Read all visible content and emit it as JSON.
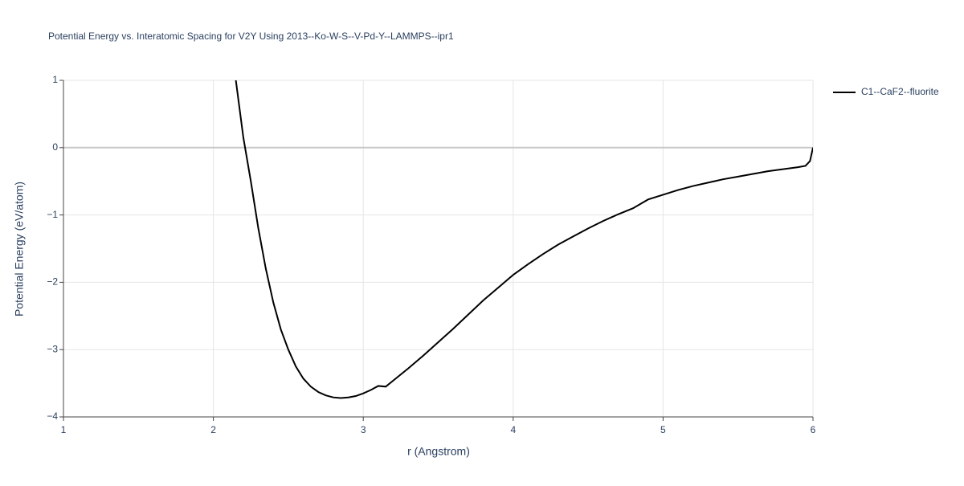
{
  "chart_data": {
    "type": "line",
    "title": "Potential Energy vs. Interatomic Spacing for V2Y Using 2013--Ko-W-S--V-Pd-Y--LAMMPS--ipr1",
    "xlabel": "r (Angstrom)",
    "ylabel": "Potential Energy (eV/atom)",
    "x": [
      2.15,
      2.2,
      2.25,
      2.3,
      2.35,
      2.4,
      2.45,
      2.5,
      2.55,
      2.6,
      2.65,
      2.7,
      2.75,
      2.8,
      2.85,
      2.9,
      2.95,
      3.0,
      3.05,
      3.1,
      3.15,
      3.2,
      3.3,
      3.4,
      3.5,
      3.6,
      3.7,
      3.8,
      3.9,
      4.0,
      4.1,
      4.2,
      4.3,
      4.4,
      4.5,
      4.6,
      4.7,
      4.8,
      4.9,
      5.0,
      5.1,
      5.2,
      5.3,
      5.4,
      5.5,
      5.6,
      5.7,
      5.8,
      5.9,
      5.95,
      5.98,
      6.0
    ],
    "series": [
      {
        "name": "C1--CaF2--fluorite",
        "color": "#000000",
        "values": [
          1.0,
          0.15,
          -0.5,
          -1.2,
          -1.8,
          -2.3,
          -2.7,
          -3.0,
          -3.25,
          -3.43,
          -3.55,
          -3.63,
          -3.68,
          -3.71,
          -3.72,
          -3.71,
          -3.69,
          -3.65,
          -3.6,
          -3.54,
          -3.55,
          -3.46,
          -3.28,
          -3.09,
          -2.89,
          -2.69,
          -2.48,
          -2.27,
          -2.08,
          -1.89,
          -1.73,
          -1.58,
          -1.44,
          -1.32,
          -1.2,
          -1.09,
          -0.99,
          -0.9,
          -0.77,
          -0.7,
          -0.63,
          -0.57,
          -0.52,
          -0.47,
          -0.43,
          -0.39,
          -0.35,
          -0.32,
          -0.29,
          -0.27,
          -0.2,
          0
        ]
      }
    ],
    "xlim": [
      1,
      6
    ],
    "xticks": [
      1,
      2,
      3,
      4,
      5,
      6
    ],
    "ylim": [
      -4,
      1
    ],
    "yticks": [
      {
        "value": -4,
        "label": "−4"
      },
      {
        "value": -3,
        "label": "−3"
      },
      {
        "value": -2,
        "label": "−2"
      },
      {
        "value": -1,
        "label": "−1"
      },
      0,
      1
    ],
    "grid": true,
    "legend": "right"
  }
}
